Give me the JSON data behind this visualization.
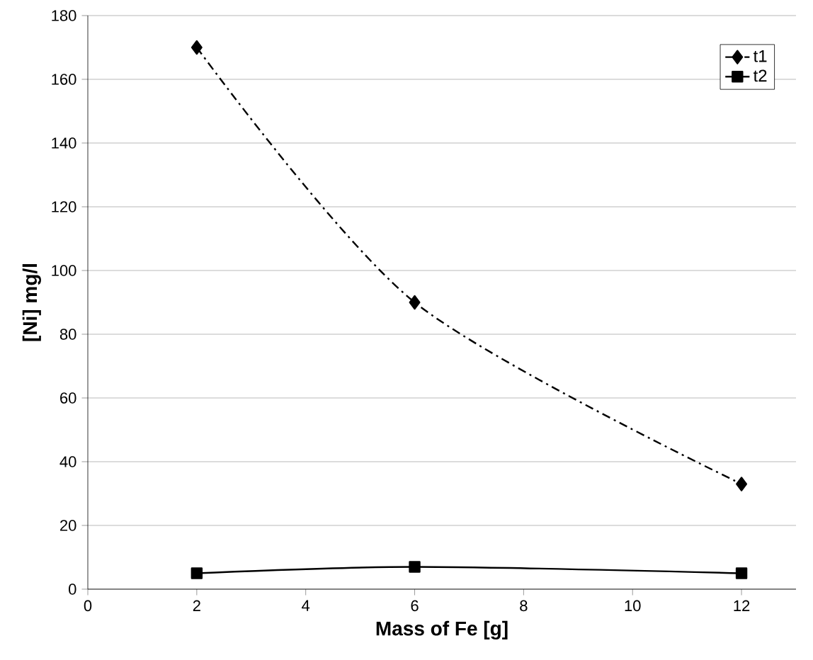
{
  "chart_data": {
    "type": "line",
    "xlabel": "Mass of Fe [g]",
    "ylabel": "[Ni] mg/l",
    "xlim": [
      0,
      13
    ],
    "xticks": [
      0,
      2,
      4,
      6,
      8,
      10,
      12
    ],
    "ylim": [
      0,
      180
    ],
    "yticks": [
      0,
      20,
      40,
      60,
      80,
      100,
      120,
      140,
      160,
      180
    ],
    "grid": "y",
    "legend": "top right",
    "series": [
      {
        "name": "t1",
        "color": "#000000",
        "x": [
          2,
          6,
          12
        ],
        "values": [
          170,
          90,
          33
        ],
        "marker": "diamond",
        "line_style": "dashed"
      },
      {
        "name": "t2",
        "color": "#000000",
        "x": [
          2,
          6,
          12
        ],
        "values": [
          5,
          7,
          5
        ],
        "marker": "square",
        "line_style": "solid"
      }
    ]
  }
}
